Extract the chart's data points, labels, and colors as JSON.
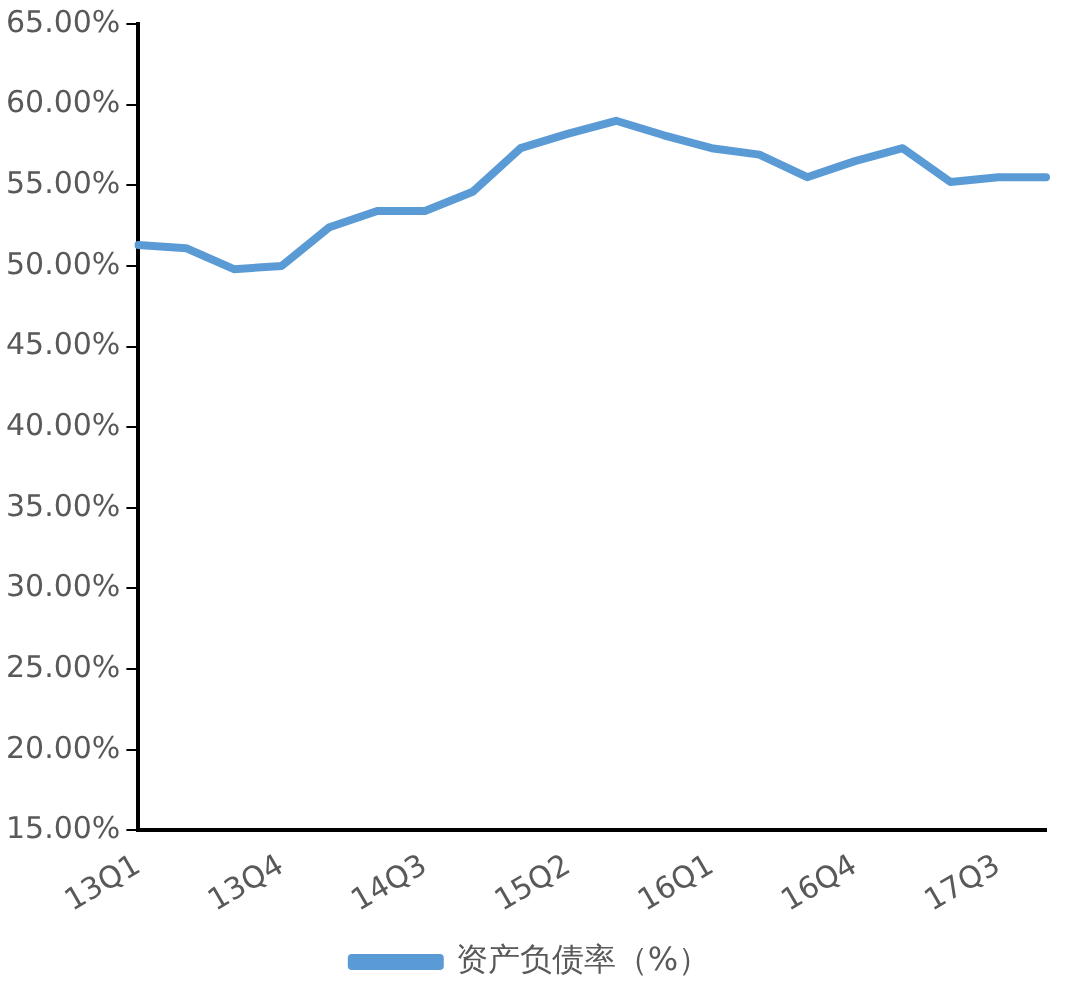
{
  "chart_data": {
    "type": "line",
    "categories": [
      "13Q1",
      null,
      null,
      "13Q4",
      null,
      null,
      "14Q3",
      null,
      null,
      "15Q2",
      null,
      null,
      "16Q1",
      null,
      null,
      "16Q4",
      null,
      null,
      "17Q3",
      null
    ],
    "series": [
      {
        "name": "资产负债率（%）",
        "color": "#5b9bd5",
        "values": [
          51.3,
          51.1,
          49.8,
          50.0,
          52.4,
          53.4,
          53.4,
          54.6,
          57.3,
          58.2,
          59.0,
          58.1,
          57.3,
          56.9,
          55.5,
          56.5,
          57.3,
          55.2,
          55.5,
          55.5
        ]
      }
    ],
    "ylim": [
      15,
      65
    ],
    "yticks": [
      {
        "value": 15,
        "label": "15.00%"
      },
      {
        "value": 20,
        "label": "20.00%"
      },
      {
        "value": 25,
        "label": "25.00%"
      },
      {
        "value": 30,
        "label": "30.00%"
      },
      {
        "value": 35,
        "label": "35.00%"
      },
      {
        "value": 40,
        "label": "40.00%"
      },
      {
        "value": 45,
        "label": "45.00%"
      },
      {
        "value": 50,
        "label": "50.00%"
      },
      {
        "value": 55,
        "label": "55.00%"
      },
      {
        "value": 60,
        "label": "60.00%"
      },
      {
        "value": 65,
        "label": "65.00%"
      }
    ],
    "grid": false,
    "legend": "bottom",
    "marker": "none",
    "line_style": "solid"
  }
}
